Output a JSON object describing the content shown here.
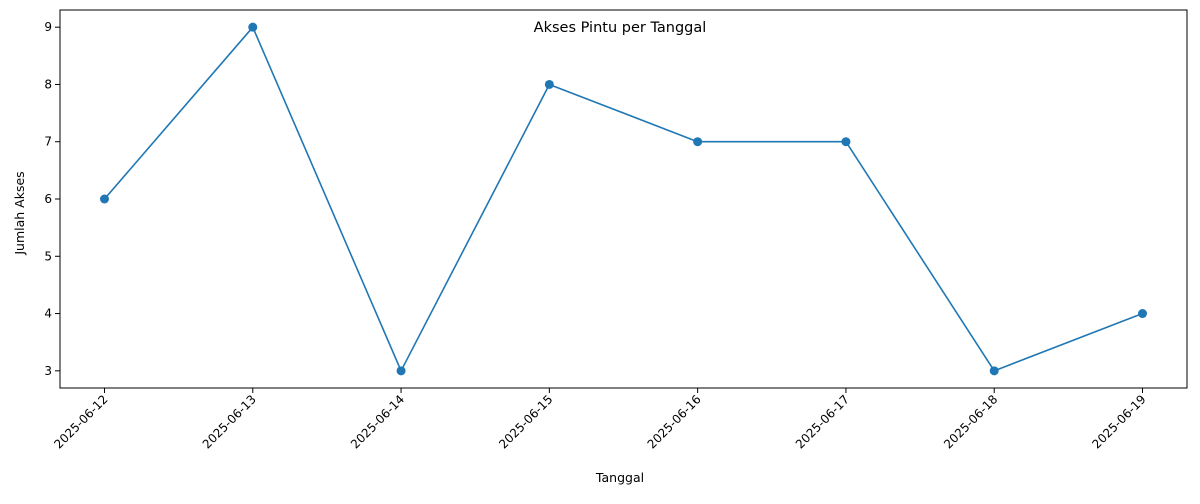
{
  "chart_data": {
    "type": "line",
    "title": "Akses Pintu per Tanggal",
    "xlabel": "Tanggal",
    "ylabel": "Jumlah Akses",
    "categories": [
      "2025-06-12",
      "2025-06-13",
      "2025-06-14",
      "2025-06-15",
      "2025-06-16",
      "2025-06-17",
      "2025-06-18",
      "2025-06-19"
    ],
    "series": [
      {
        "values": [
          6,
          9,
          3,
          8,
          7,
          7,
          3,
          4
        ],
        "color": "#1f77b4",
        "marker": "circle"
      }
    ],
    "y_ticks": [
      "3",
      "4",
      "5",
      "6",
      "7",
      "8",
      "9"
    ],
    "ylim": [
      2.7,
      9.3
    ],
    "grid": false,
    "legend": "none",
    "x_tick_rotation": "45 degrees"
  }
}
